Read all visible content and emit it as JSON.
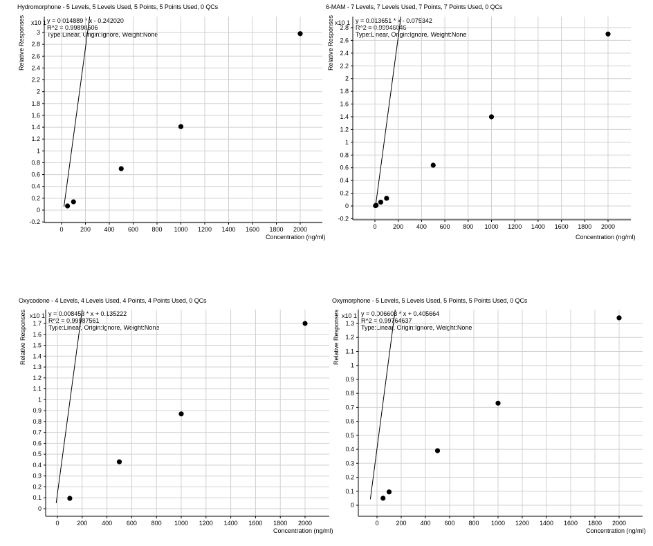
{
  "colors": {
    "grid": "#d0d0d0",
    "axis": "#000000",
    "line": "#000000",
    "point": "#000000",
    "background": "#ffffff"
  },
  "chart_data": [
    {
      "type": "scatter",
      "title": "Hydromorphone - 5 Levels, 5 Levels Used, 5 Points, 5 Points Used, 0 QCs",
      "equation": "y = 0.014889 * x - 0.242020",
      "r2": "R^2 = 0.99898606",
      "fit_info": "Type:Linear, Origin:Ignore, Weight:None",
      "multiplier": "x10 1",
      "xlabel": "Concentration (ng/ml)",
      "ylabel": "Relative Responses",
      "x_ticks": [
        0,
        200,
        400,
        600,
        800,
        1000,
        1200,
        1400,
        1600,
        1800,
        2000
      ],
      "y_ticks": [
        -0.2,
        0,
        0.2,
        0.4,
        0.6,
        0.8,
        1,
        1.2,
        1.4,
        1.6,
        1.8,
        2,
        2.2,
        2.4,
        2.6,
        2.8,
        3
      ],
      "xlim": [
        -150,
        2200
      ],
      "ylim": [
        -0.2,
        3.2
      ],
      "grid": true,
      "points": {
        "x": [
          50,
          100,
          500,
          1000,
          2000
        ],
        "y": [
          0.07,
          0.14,
          0.7,
          1.41,
          2.98
        ]
      },
      "fit": {
        "slope": 0.014889,
        "intercept": -0.24202,
        "x_range": [
          20,
          2200
        ]
      }
    },
    {
      "type": "scatter",
      "title": "6-MAM - 7 Levels, 7 Levels Used, 7 Points, 7 Points Used, 0 QCs",
      "equation": "y = 0.013651 * x - 0.075342",
      "r2": "R^2 = 0.99946046",
      "fit_info": "Type:Linear, Origin:Ignore, Weight:None",
      "multiplier": "x10 1",
      "xlabel": "Concentration (ng/ml)",
      "ylabel": "Relative Responses",
      "x_ticks": [
        0,
        200,
        400,
        600,
        800,
        1000,
        1200,
        1400,
        1600,
        1800,
        2000
      ],
      "y_ticks": [
        -0.2,
        0,
        0.2,
        0.4,
        0.6,
        0.8,
        1,
        1.2,
        1.4,
        1.6,
        1.8,
        2,
        2.2,
        2.4,
        2.6,
        2.8
      ],
      "xlim": [
        -190,
        2200
      ],
      "ylim": [
        -0.25,
        2.95
      ],
      "grid": true,
      "points": {
        "x": [
          5,
          10,
          50,
          100,
          500,
          1000,
          2000
        ],
        "y": [
          0.005,
          0.01,
          0.06,
          0.12,
          0.64,
          1.4,
          2.7
        ]
      },
      "fit": {
        "slope": 0.013651,
        "intercept": -0.075342,
        "x_range": [
          5,
          2200
        ]
      }
    },
    {
      "type": "scatter",
      "title": "Oxycodone - 4 Levels, 4 Levels Used, 4 Points, 4 Points Used, 0 QCs",
      "equation": "y = 0.008453 * x + 0.135222",
      "r2": "R^2 = 0.99987561",
      "fit_info": "Type:Linear, Origin:Ignore, Weight:None",
      "multiplier": "x10 1",
      "xlabel": "Concentration (ng/ml)",
      "ylabel": "Relative Responses",
      "x_ticks": [
        0,
        200,
        400,
        600,
        800,
        1000,
        1200,
        1400,
        1600,
        1800,
        2000
      ],
      "y_ticks": [
        0,
        0.1,
        0.2,
        0.3,
        0.4,
        0.5,
        0.6,
        0.7,
        0.8,
        0.9,
        1,
        1.1,
        1.2,
        1.3,
        1.4,
        1.5,
        1.6,
        1.7
      ],
      "xlim": [
        -95,
        2200
      ],
      "ylim": [
        -0.07,
        1.85
      ],
      "grid": true,
      "points": {
        "x": [
          100,
          500,
          1000,
          2000
        ],
        "y": [
          0.095,
          0.43,
          0.87,
          1.7
        ]
      },
      "fit": {
        "slope": 0.008453,
        "intercept": 0.135222,
        "x_range": [
          -10,
          2200
        ]
      }
    },
    {
      "type": "scatter",
      "title": "Oxymorphone - 5 Levels, 5 Levels Used, 5 Points, 5 Points Used, 0 QCs",
      "equation": "y = 0.006603 * x + 0.405664",
      "r2": "R^2 = 0.99764637",
      "fit_info": "Type:Linear, Origin:Ignore, Weight:None",
      "multiplier": "x10 1",
      "xlabel": "Concentration (ng/ml)",
      "ylabel": "Relative Responses",
      "x_ticks": [
        0,
        200,
        400,
        600,
        800,
        1000,
        1200,
        1400,
        1600,
        1800,
        2000
      ],
      "y_ticks": [
        0,
        0.1,
        0.2,
        0.3,
        0.4,
        0.5,
        0.6,
        0.7,
        0.8,
        0.9,
        1,
        1.1,
        1.2,
        1.3
      ],
      "xlim": [
        -155,
        2200
      ],
      "ylim": [
        -0.08,
        1.45
      ],
      "grid": true,
      "points": {
        "x": [
          50,
          100,
          500,
          1000,
          2000
        ],
        "y": [
          0.05,
          0.095,
          0.39,
          0.73,
          1.34
        ]
      },
      "fit": {
        "slope": 0.006603,
        "intercept": 0.405664,
        "x_range": [
          -55,
          2200
        ]
      }
    }
  ]
}
